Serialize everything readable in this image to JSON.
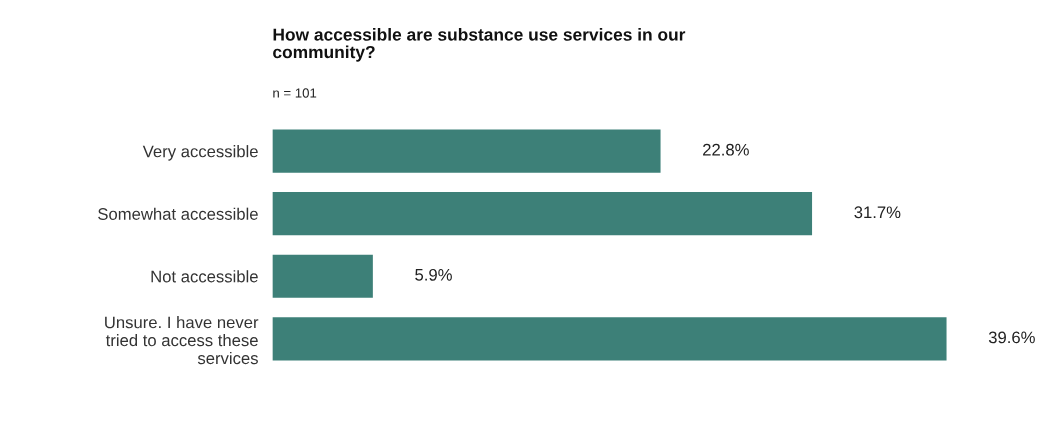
{
  "chart_data": {
    "type": "bar",
    "orientation": "horizontal",
    "title": "How accessible are substance use services in our\ncommunity?",
    "subtitle": "n = 101",
    "categories": [
      "Very accessible",
      "Somewhat accessible",
      "Not accessible",
      "Unsure. I have never\ntried to access these\nservices"
    ],
    "values": [
      22.8,
      31.7,
      5.9,
      39.6
    ],
    "value_labels": [
      "22.8%",
      "31.7%",
      "5.9%",
      "39.6%"
    ],
    "color": "#3d8078",
    "grid": false,
    "legend": false
  }
}
